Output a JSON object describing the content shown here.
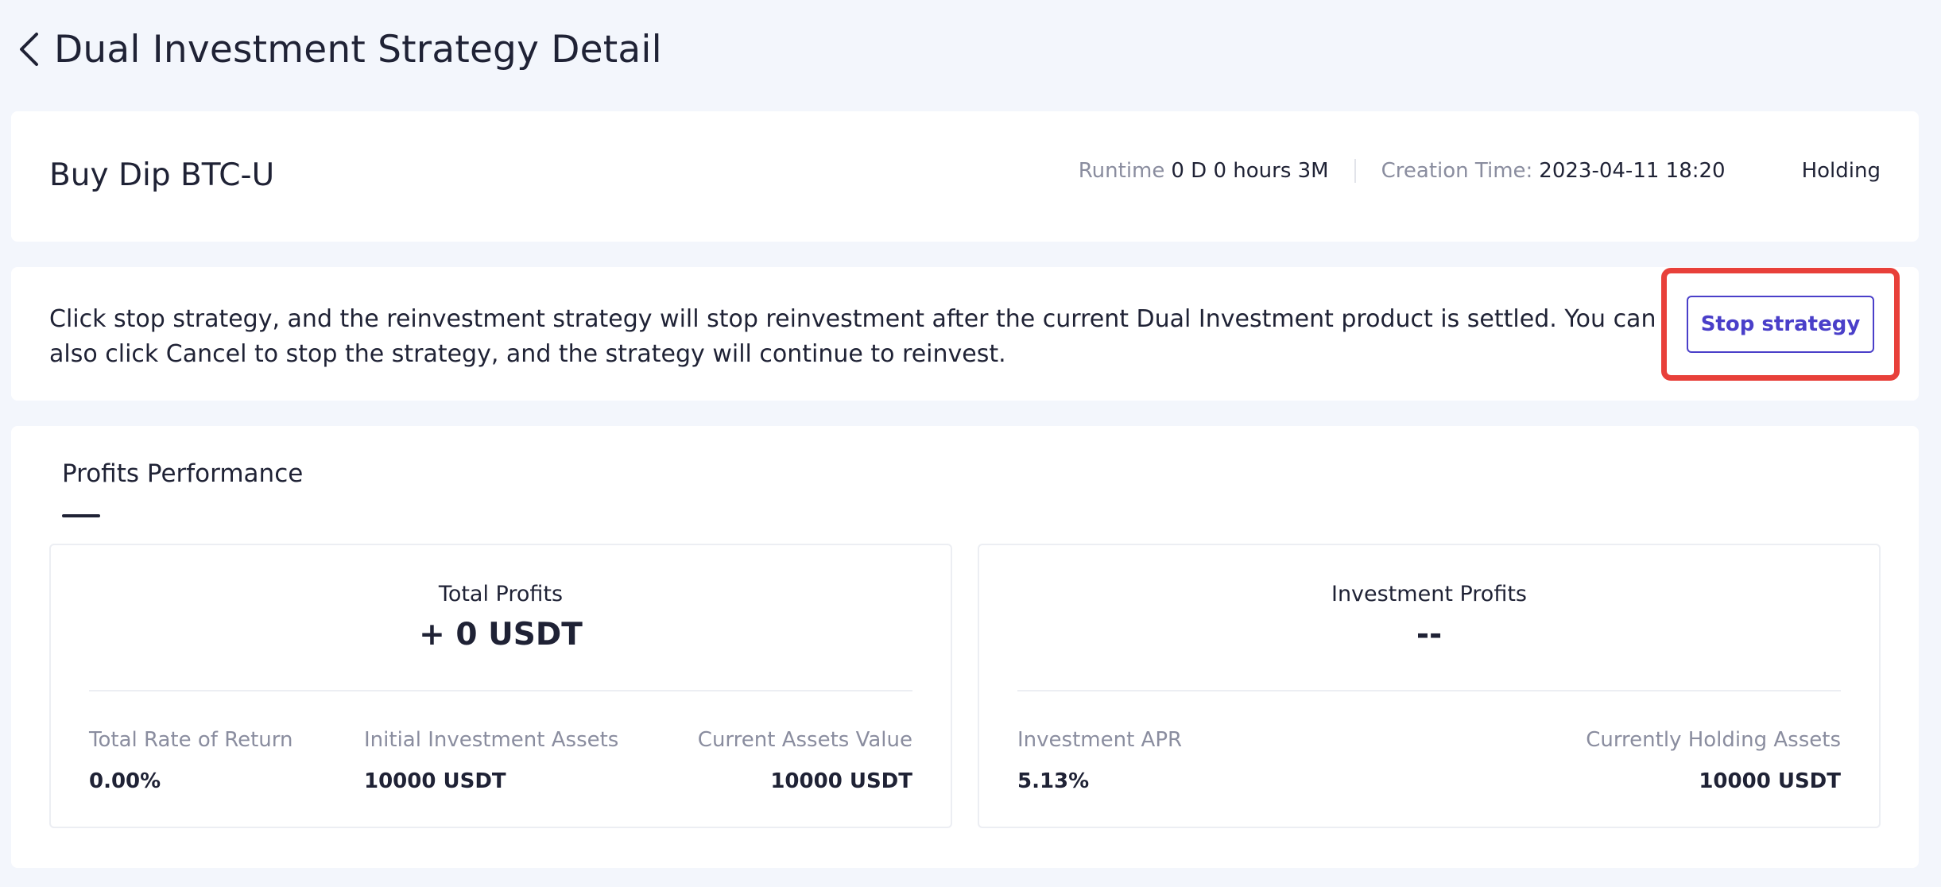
{
  "header": {
    "back_icon": "chevron-left-icon",
    "title": "Dual Investment Strategy Detail"
  },
  "strategy": {
    "name": "Buy Dip BTC-U",
    "runtime_label": "Runtime",
    "runtime_value": "0 D 0 hours 3M",
    "creation_label": "Creation Time:",
    "creation_value": "2023-04-11 18:20",
    "status": "Holding"
  },
  "notice": {
    "text": "Click stop strategy, and the reinvestment strategy will stop reinvestment after the current Dual Investment product is settled. You can also click Cancel to stop the strategy, and the strategy will continue to reinvest.",
    "stop_button_label": "Stop strategy",
    "highlight_color": "#e8403a",
    "button_color": "#4a3fc9"
  },
  "profits": {
    "section_title": "Profits Performance",
    "total": {
      "label": "Total Profits",
      "value": "+ 0 USDT",
      "stats": [
        {
          "label": "Total Rate of Return",
          "value": "0.00%"
        },
        {
          "label": "Initial Investment Assets",
          "value": "10000 USDT"
        },
        {
          "label": "Current Assets Value",
          "value": "10000 USDT"
        }
      ]
    },
    "investment": {
      "label": "Investment Profits",
      "value": "--",
      "stats": [
        {
          "label": "Investment APR",
          "value": "5.13%"
        },
        {
          "label": "Currently Holding Assets",
          "value": "10000 USDT"
        }
      ]
    }
  }
}
